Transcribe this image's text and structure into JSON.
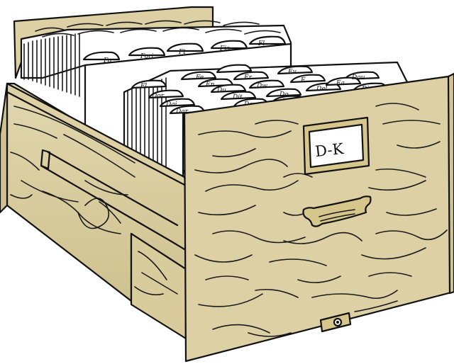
{
  "drawer": {
    "label": "D-K",
    "wood_color": "#dcd0a4",
    "handle_color": "#d6c68c",
    "paper_color": "#ffffff"
  },
  "back_tabs": [
    "Fo",
    "Fori",
    "Ft",
    "Fis",
    "Fl"
  ],
  "front_tabs": [
    "Fe",
    "Ea",
    "Fl",
    "Er",
    "Ev",
    "Dou",
    "En",
    "Du",
    "Dw",
    "E",
    "Do",
    "Del",
    "Dit",
    "Dov",
    "De",
    "Dor",
    "Dai",
    "Dar",
    "Di",
    "Dr"
  ]
}
